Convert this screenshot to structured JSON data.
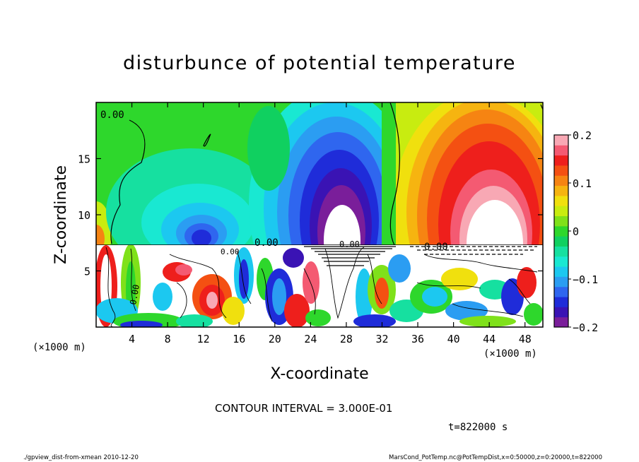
{
  "chart_data": {
    "type": "heatmap",
    "title": "disturbunce of potential temperature",
    "xlabel": "X-coordinate",
    "ylabel": "Z-coordinate",
    "x_unit_label": "(×1000 m)",
    "z_unit_label": "(×1000 m)",
    "xlim": [
      0,
      50
    ],
    "ylim": [
      0,
      20
    ],
    "x_ticks": [
      4,
      8,
      12,
      16,
      20,
      24,
      28,
      32,
      36,
      40,
      44,
      48
    ],
    "y_ticks": [
      5,
      10,
      15
    ],
    "colorbar": {
      "vmin": -0.2,
      "vmax": 0.2,
      "ticks": [
        0.2,
        0.1,
        0,
        -0.1,
        -0.2
      ],
      "tick_labels": [
        "0.2",
        "0.1",
        "0",
        "−0.1",
        "−0.2"
      ],
      "colors": [
        "#7a1e9a",
        "#3a13b4",
        "#1f2cd9",
        "#2f66ef",
        "#2b9df2",
        "#1cc8f0",
        "#19e8d2",
        "#16e0a0",
        "#10d060",
        "#2ed72c",
        "#7fe11a",
        "#c8ec10",
        "#f0e00e",
        "#f6b410",
        "#f68412",
        "#f45012",
        "#ee1f1c",
        "#f45a72",
        "#f8a8b4"
      ]
    },
    "contour_labels": [
      "0.00",
      "0.00",
      "0.00",
      "0.00",
      "0.00",
      "0.00"
    ],
    "contour_interval_text": "CONTOUR INTERVAL = 3.000E-01",
    "anomalies": [
      {
        "x": 11.5,
        "z": 8.4,
        "value": -0.14
      },
      {
        "x": 26.5,
        "z": 12.5,
        "value": -0.24
      },
      {
        "x": 42.5,
        "z": 12.0,
        "value": 0.24
      },
      {
        "x": 36.5,
        "z": 14.5,
        "value": 0.12
      },
      {
        "x": 24.5,
        "z": 17.0,
        "value": -0.08
      },
      {
        "x": 2.0,
        "z": 9.0,
        "value": 0.05
      }
    ]
  },
  "time_label": "t=822000 s",
  "footer": {
    "left": "./gpview_dist-from-xmean  2010-12-20",
    "right": "MarsCond_PotTemp.nc@PotTempDist,x=0:50000,z=0:20000,t=822000"
  }
}
